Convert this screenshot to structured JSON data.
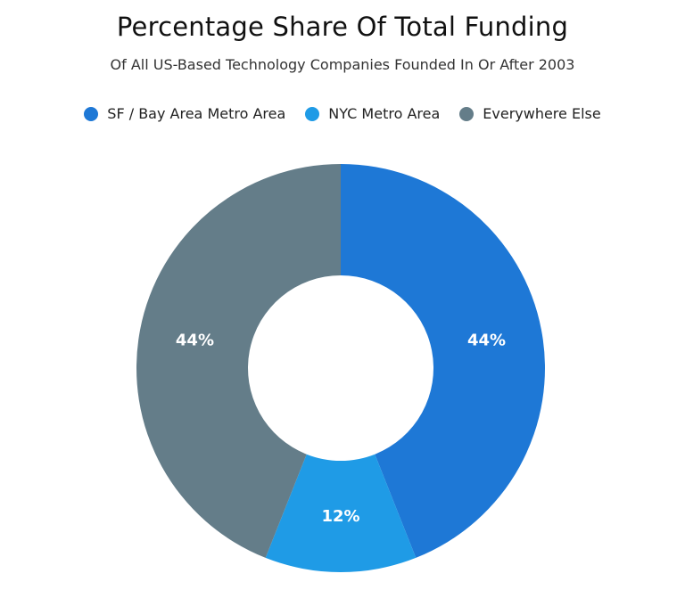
{
  "chart_data": {
    "type": "pie",
    "title": "Percentage Share Of Total Funding",
    "subtitle": "Of All US-Based Technology Companies Founded In Or After 2003",
    "categories": [
      "SF / Bay Area Metro Area",
      "NYC Metro Area",
      "Everywhere Else"
    ],
    "values": [
      44,
      12,
      44
    ],
    "unit": "%",
    "labels": [
      "44%",
      "12%",
      "44%"
    ],
    "colors": [
      "#1e78d6",
      "#1f9be6",
      "#647d89"
    ],
    "legend_position": "top",
    "donut": true
  }
}
